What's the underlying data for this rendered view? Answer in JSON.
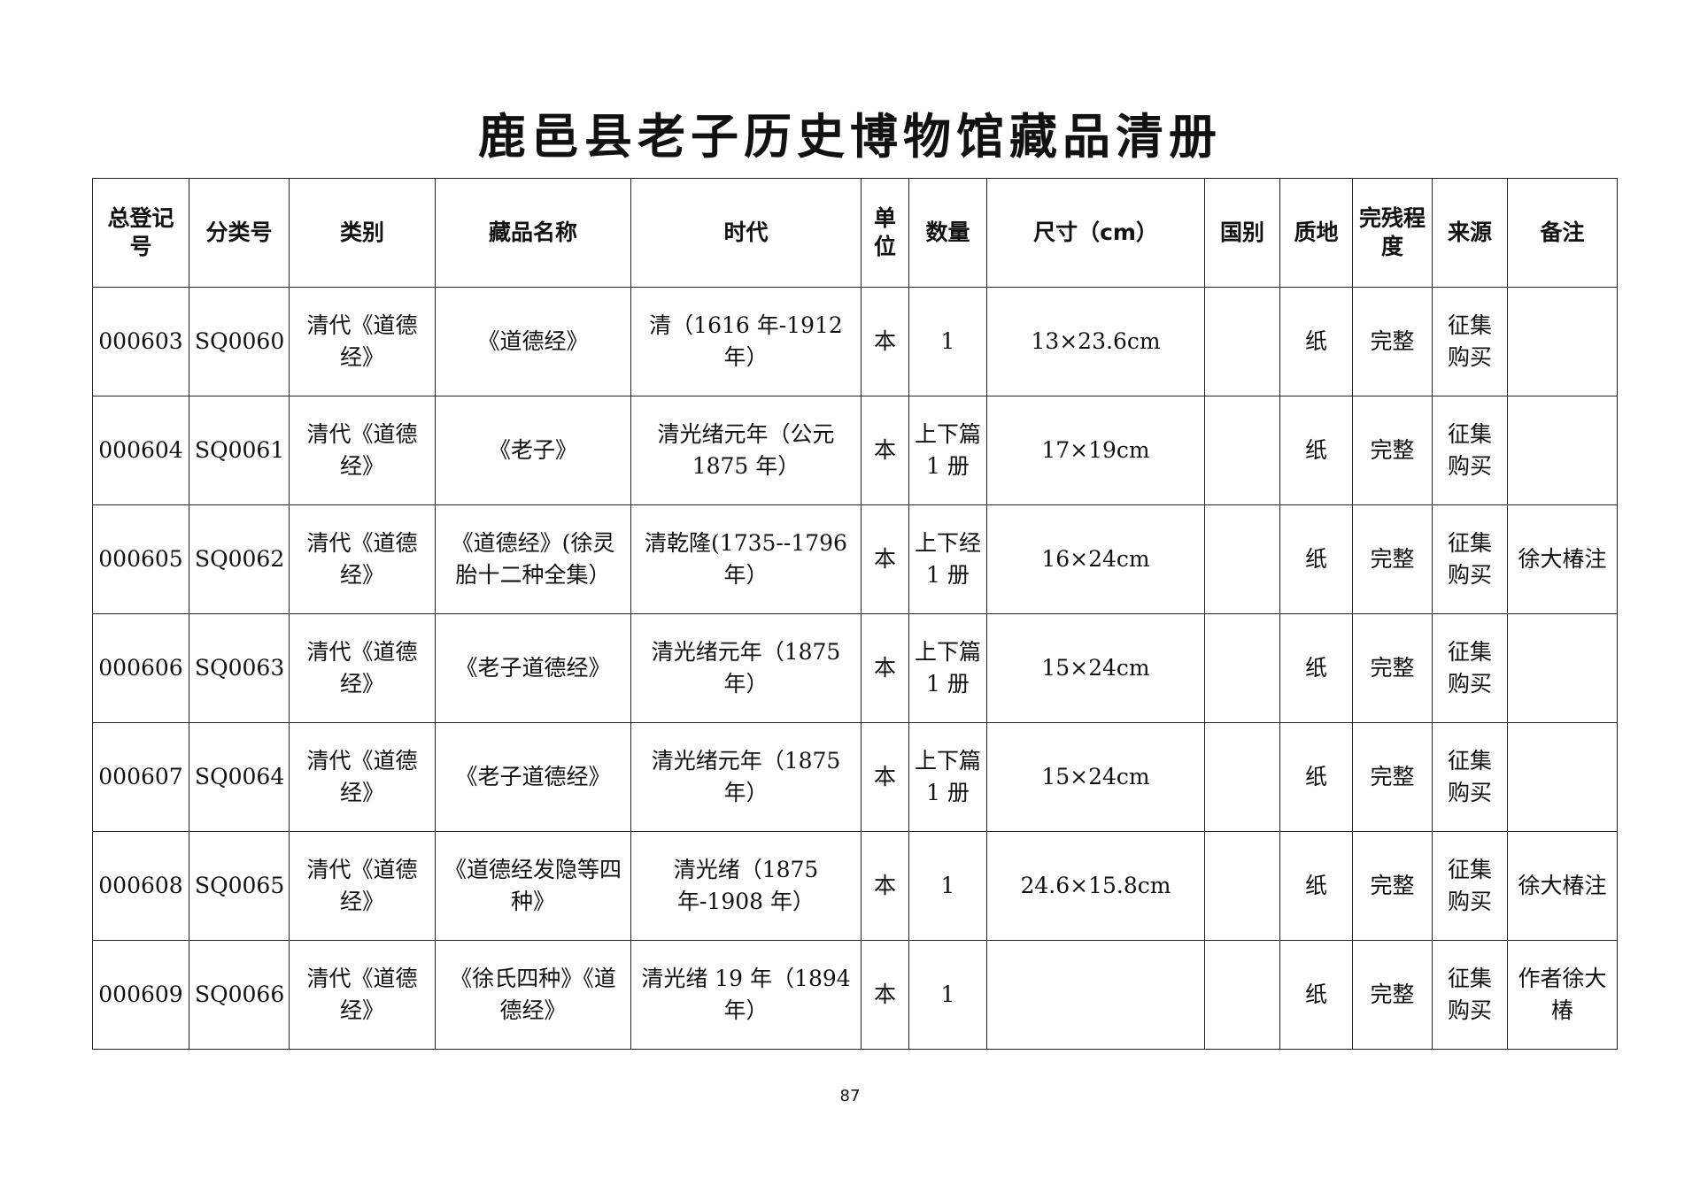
{
  "title": "鹿邑县老子历史博物馆藏品清册",
  "columns": [
    "总登记号",
    "分类号",
    "类别",
    "藏品名称",
    "时代",
    "单位",
    "数量",
    "尺寸（cm）",
    "国别",
    "质地",
    "完残程度",
    "来源",
    "备注"
  ],
  "rows": [
    {
      "reg_no": "000603",
      "class_no": "SQ0060",
      "category": "清代《道德经》",
      "name": "《道德经》",
      "era": "清（1616 年-1912 年）",
      "unit": "本",
      "qty": "1",
      "size": "13×23.6cm",
      "country": "",
      "material": "纸",
      "condition": "完整",
      "source": "征集购买",
      "note": ""
    },
    {
      "reg_no": "000604",
      "class_no": "SQ0061",
      "category": "清代《道德经》",
      "name": "《老子》",
      "era": "清光绪元年（公元 1875 年）",
      "unit": "本",
      "qty": "上下篇 1 册",
      "size": "17×19cm",
      "country": "",
      "material": "纸",
      "condition": "完整",
      "source": "征集购买",
      "note": ""
    },
    {
      "reg_no": "000605",
      "class_no": "SQ0062",
      "category": "清代《道德经》",
      "name": "《道德经》(徐灵胎十二种全集）",
      "era": "清乾隆(1735--1796 年）",
      "unit": "本",
      "qty": "上下经 1 册",
      "size": "16×24cm",
      "country": "",
      "material": "纸",
      "condition": "完整",
      "source": "征集购买",
      "note": "徐大椿注"
    },
    {
      "reg_no": "000606",
      "class_no": "SQ0063",
      "category": "清代《道德经》",
      "name": "《老子道德经》",
      "era": "清光绪元年（1875 年）",
      "unit": "本",
      "qty": "上下篇 1 册",
      "size": "15×24cm",
      "country": "",
      "material": "纸",
      "condition": "完整",
      "source": "征集购买",
      "note": ""
    },
    {
      "reg_no": "000607",
      "class_no": "SQ0064",
      "category": "清代《道德经》",
      "name": "《老子道德经》",
      "era": "清光绪元年（1875 年）",
      "unit": "本",
      "qty": "上下篇 1 册",
      "size": "15×24cm",
      "country": "",
      "material": "纸",
      "condition": "完整",
      "source": "征集购买",
      "note": ""
    },
    {
      "reg_no": "000608",
      "class_no": "SQ0065",
      "category": "清代《道德经》",
      "name": "《道德经发隐等四种》",
      "era": "清光绪（1875 年-1908 年）",
      "unit": "本",
      "qty": "1",
      "size": "24.6×15.8cm",
      "country": "",
      "material": "纸",
      "condition": "完整",
      "source": "征集购买",
      "note": "徐大椿注"
    },
    {
      "reg_no": "000609",
      "class_no": "SQ0066",
      "category": "清代《道德经》",
      "name": "《徐氏四种》《道德经》",
      "era": "清光绪 19 年（1894 年）",
      "unit": "本",
      "qty": "1",
      "size": "",
      "country": "",
      "material": "纸",
      "condition": "完整",
      "source": "征集购买",
      "note": "作者徐大椿"
    }
  ],
  "page_number": "87"
}
